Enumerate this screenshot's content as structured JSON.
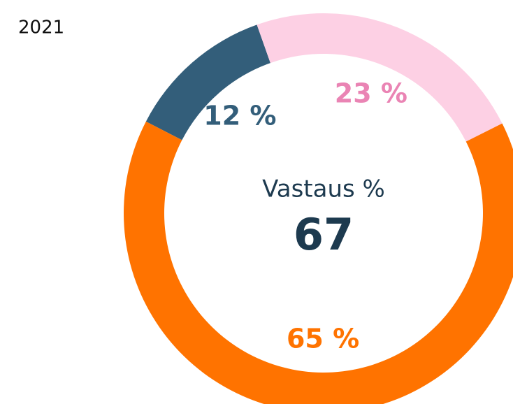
{
  "chart_data": {
    "type": "donut",
    "title": "2021",
    "center_label": "Vastaus %",
    "center_value": 67,
    "categories": [
      null,
      null,
      null
    ],
    "values": [
      23,
      65,
      12
    ],
    "value_labels": [
      "23 %",
      "65 %",
      "12 %"
    ],
    "colors": [
      "#fdd0e4",
      "#ff7300",
      "#335e7a"
    ],
    "label_colors": [
      "#ea84b4",
      "#ff7300",
      "#335e7a"
    ]
  }
}
